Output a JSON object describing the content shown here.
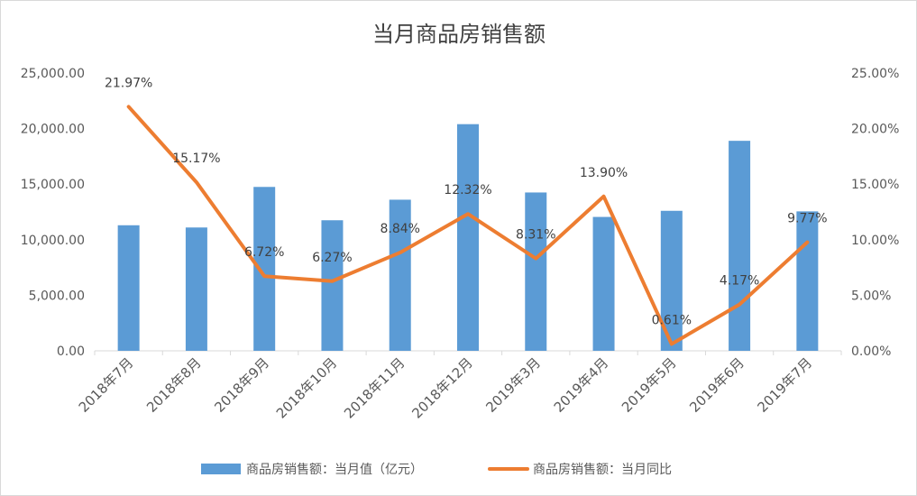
{
  "chart_data": {
    "type": "bar+line",
    "title": "当月商品房销售额",
    "categories": [
      "2018年7月",
      "2018年8月",
      "2018年9月",
      "2018年10月",
      "2018年11月",
      "2018年12月",
      "2019年3月",
      "2019年4月",
      "2019年5月",
      "2019年6月",
      "2019年7月"
    ],
    "series": [
      {
        "name": "商品房销售额：当月值（亿元）",
        "type": "bar",
        "axis": "left",
        "color": "#5b9bd5",
        "values": [
          11300,
          11100,
          14750,
          11750,
          13600,
          20400,
          14250,
          12050,
          12600,
          18900,
          12550
        ]
      },
      {
        "name": "商品房销售额：当月同比",
        "type": "line",
        "axis": "right",
        "color": "#ed7d31",
        "values": [
          21.97,
          15.17,
          6.72,
          6.27,
          8.84,
          12.32,
          8.31,
          13.9,
          0.61,
          4.17,
          9.77
        ],
        "labels": [
          "21.97%",
          "15.17%",
          "6.72%",
          "6.27%",
          "8.84%",
          "12.32%",
          "8.31%",
          "13.90%",
          "0.61%",
          "4.17%",
          "9.77%"
        ]
      }
    ],
    "left_axis": {
      "ylim": [
        0,
        25000
      ],
      "ticks": [
        "0.00",
        "5,000.00",
        "10,000.00",
        "15,000.00",
        "20,000.00",
        "25,000.00"
      ]
    },
    "right_axis": {
      "ylim": [
        0,
        25
      ],
      "ticks": [
        "0.00%",
        "5.00%",
        "10.00%",
        "15.00%",
        "20.00%",
        "25.00%"
      ]
    },
    "grid": false,
    "legend_position": "bottom"
  }
}
